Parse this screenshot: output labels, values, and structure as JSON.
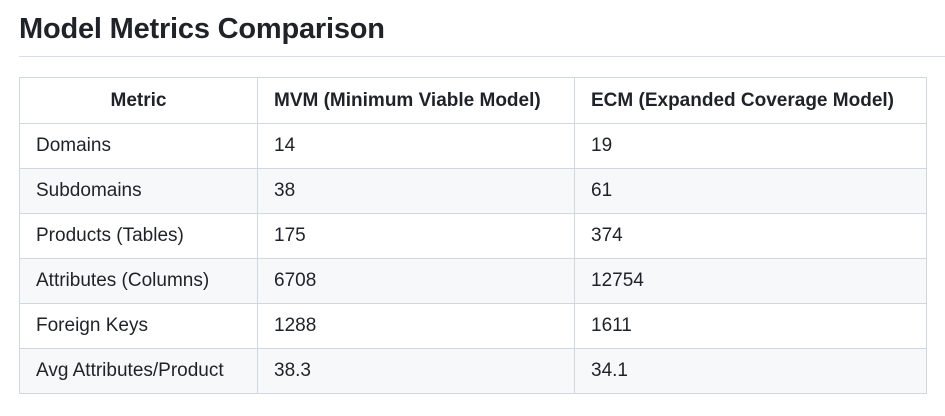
{
  "page": {
    "title": "Model Metrics Comparison"
  },
  "table": {
    "headers": [
      "Metric",
      "MVM (Minimum Viable Model)",
      "ECM (Expanded Coverage Model)"
    ],
    "rows": [
      [
        "Domains",
        "14",
        "19"
      ],
      [
        "Subdomains",
        "38",
        "61"
      ],
      [
        "Products (Tables)",
        "175",
        "374"
      ],
      [
        "Attributes (Columns)",
        "6708",
        "12754"
      ],
      [
        "Foreign Keys",
        "1288",
        "1611"
      ],
      [
        "Avg Attributes/Product",
        "38.3",
        "34.1"
      ]
    ]
  },
  "colors": {
    "text": "#1f2328",
    "border": "#d0d7de",
    "stripe": "#f6f8fa",
    "rule": "#d8dee4"
  }
}
